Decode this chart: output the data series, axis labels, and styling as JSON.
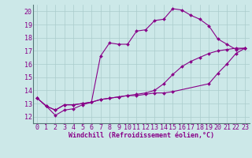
{
  "background_color": "#cce8e8",
  "line_color": "#880088",
  "grid_color": "#aacccc",
  "xlabel": "Windchill (Refroidissement éolien,°C)",
  "xlabel_fontsize": 6.0,
  "tick_fontsize": 6.0,
  "xlim": [
    -0.5,
    23.5
  ],
  "ylim": [
    11.5,
    20.5
  ],
  "yticks": [
    12,
    13,
    14,
    15,
    16,
    17,
    18,
    19,
    20
  ],
  "xticks": [
    0,
    1,
    2,
    3,
    4,
    5,
    6,
    7,
    8,
    9,
    10,
    11,
    12,
    13,
    14,
    15,
    16,
    17,
    18,
    19,
    20,
    21,
    22,
    23
  ],
  "series1_x": [
    0,
    1,
    2,
    3,
    4,
    5,
    6,
    7,
    8,
    9,
    10,
    11,
    12,
    13,
    14,
    15,
    16,
    17,
    18,
    19,
    20,
    21,
    22,
    23
  ],
  "series1_y": [
    13.4,
    12.8,
    12.1,
    12.5,
    12.6,
    12.9,
    13.1,
    16.6,
    17.6,
    17.5,
    17.5,
    18.5,
    18.6,
    19.3,
    19.4,
    20.2,
    20.1,
    19.7,
    19.4,
    18.9,
    17.9,
    17.5,
    17.1,
    17.2
  ],
  "series2_x": [
    0,
    1,
    2,
    3,
    4,
    5,
    6,
    7,
    8,
    9,
    10,
    11,
    12,
    13,
    14,
    15,
    19,
    20,
    21,
    22,
    23
  ],
  "series2_y": [
    13.4,
    12.8,
    12.5,
    12.9,
    12.9,
    13.0,
    13.1,
    13.3,
    13.4,
    13.5,
    13.6,
    13.6,
    13.7,
    13.8,
    13.8,
    13.9,
    14.5,
    15.3,
    16.0,
    16.8,
    17.2
  ],
  "series3_x": [
    0,
    1,
    2,
    3,
    4,
    5,
    6,
    7,
    8,
    9,
    10,
    11,
    12,
    13,
    14,
    15,
    16,
    17,
    18,
    19,
    20,
    21,
    22,
    23
  ],
  "series3_y": [
    13.4,
    12.8,
    12.5,
    12.9,
    12.9,
    13.0,
    13.1,
    13.3,
    13.4,
    13.5,
    13.6,
    13.7,
    13.8,
    14.0,
    14.5,
    15.2,
    15.8,
    16.2,
    16.5,
    16.8,
    17.0,
    17.1,
    17.2,
    17.2
  ]
}
